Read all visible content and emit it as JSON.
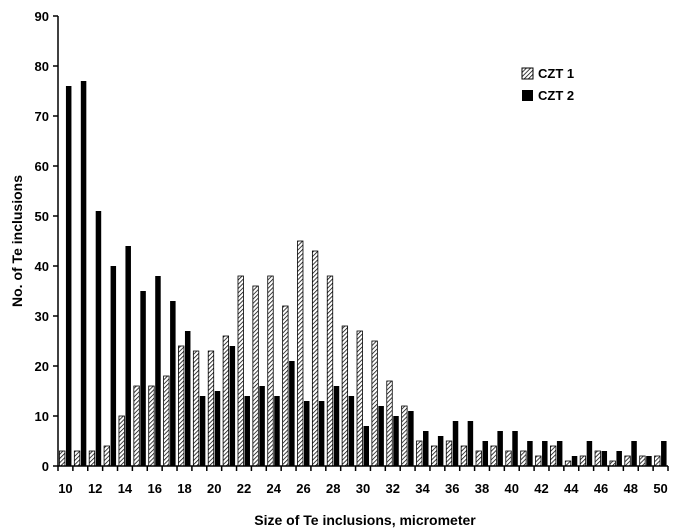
{
  "chart_data": {
    "type": "bar",
    "xlabel": "Size of Te inclusions, micrometer",
    "ylabel": "No. of Te inclusions",
    "ylim": [
      0,
      90
    ],
    "yticks": [
      0,
      10,
      20,
      30,
      40,
      50,
      60,
      70,
      80,
      90
    ],
    "xtick_labels": [
      "10",
      "12",
      "14",
      "16",
      "18",
      "20",
      "22",
      "24",
      "26",
      "28",
      "30",
      "32",
      "34",
      "36",
      "38",
      "40",
      "42",
      "44",
      "46",
      "48",
      "50"
    ],
    "categories": [
      10,
      11,
      12,
      13,
      14,
      15,
      16,
      17,
      18,
      19,
      20,
      21,
      22,
      23,
      24,
      25,
      26,
      27,
      28,
      29,
      30,
      31,
      32,
      33,
      34,
      35,
      36,
      37,
      38,
      39,
      40,
      41,
      42,
      43,
      44,
      45,
      46,
      47,
      48,
      49,
      50
    ],
    "grid": false,
    "legend_position": "top-right",
    "series": [
      {
        "name": "CZT 1",
        "pattern": "diagonal-hatch",
        "color": "#000000",
        "values": [
          3,
          3,
          3,
          4,
          10,
          16,
          16,
          18,
          24,
          23,
          23,
          26,
          38,
          36,
          38,
          32,
          45,
          43,
          38,
          28,
          27,
          25,
          17,
          12,
          5,
          4,
          5,
          4,
          3,
          4,
          3,
          3,
          2,
          4,
          1,
          2,
          3,
          1,
          2,
          2,
          2
        ]
      },
      {
        "name": "CZT 2",
        "pattern": "solid",
        "color": "#000000",
        "values": [
          76,
          77,
          51,
          40,
          44,
          35,
          38,
          33,
          27,
          14,
          15,
          24,
          14,
          16,
          14,
          21,
          13,
          13,
          16,
          14,
          8,
          12,
          10,
          11,
          7,
          6,
          9,
          9,
          5,
          7,
          7,
          5,
          5,
          5,
          2,
          5,
          3,
          3,
          5,
          2,
          5
        ]
      }
    ]
  }
}
